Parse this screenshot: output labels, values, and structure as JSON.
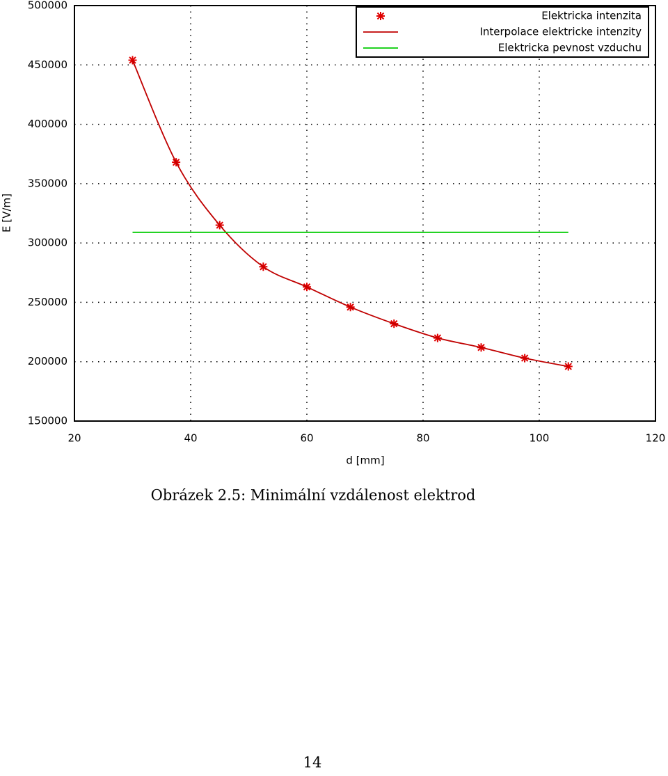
{
  "chart_data": {
    "type": "line",
    "x_label": "d [mm]",
    "y_label": "E [V/m]",
    "x": [
      30,
      37.5,
      45,
      52.5,
      60,
      67.5,
      75,
      82.5,
      90,
      97.5,
      105
    ],
    "series": [
      {
        "name": "Elektricka intenzita",
        "color": "#e00000",
        "marker": "star",
        "line": false,
        "values": [
          454000,
          368000,
          315000,
          280000,
          263000,
          246000,
          232000,
          220000,
          212000,
          203000,
          196000
        ]
      },
      {
        "name": "Interpolace elektricke intenzity",
        "color": "#c00000",
        "marker": "none",
        "line": true,
        "smooth": true,
        "values": [
          454000,
          368000,
          315000,
          280000,
          263000,
          246000,
          232000,
          220000,
          212000,
          203000,
          196000
        ]
      },
      {
        "name": "Elektricka pevnost vzduchu",
        "color": "#00cc00",
        "marker": "none",
        "line": true,
        "x": [
          30,
          105
        ],
        "values": [
          309000,
          309000
        ]
      }
    ],
    "xlim": [
      20,
      120
    ],
    "xticks": [
      20,
      40,
      60,
      80,
      100,
      120
    ],
    "ylim": [
      150000,
      500000
    ],
    "yticks": [
      150000,
      200000,
      250000,
      300000,
      350000,
      400000,
      450000,
      500000
    ],
    "grid": true,
    "legend": "upper right"
  },
  "caption": "Obrázek 2.5: Minimální vzdálenost elektrod",
  "page_number": "14"
}
